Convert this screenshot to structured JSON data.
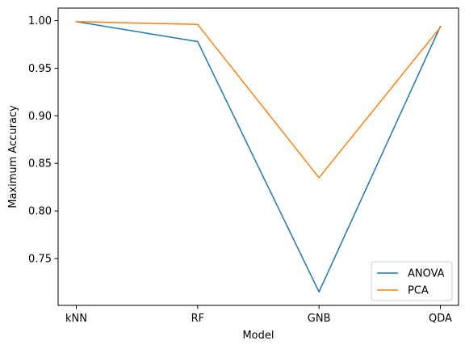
{
  "chart_data": {
    "type": "line",
    "categories": [
      "kNN",
      "RF",
      "GNB",
      "QDA"
    ],
    "series": [
      {
        "name": "ANOVA",
        "values": [
          0.999,
          0.978,
          0.715,
          0.994
        ],
        "color": "#1f77b4"
      },
      {
        "name": "PCA",
        "values": [
          0.999,
          0.996,
          0.835,
          0.993
        ],
        "color": "#ff7f0e"
      }
    ],
    "xlabel": "Model",
    "ylabel": "Maximum Accuracy",
    "ylim": [
      0.7008,
      1.0132
    ],
    "yticks": [
      0.75,
      0.8,
      0.85,
      0.9,
      0.95,
      1.0
    ],
    "ytick_labels": [
      "0.75",
      "0.80",
      "0.85",
      "0.90",
      "0.95",
      "1.00"
    ],
    "grid": false,
    "legend_position": "lower-right"
  }
}
